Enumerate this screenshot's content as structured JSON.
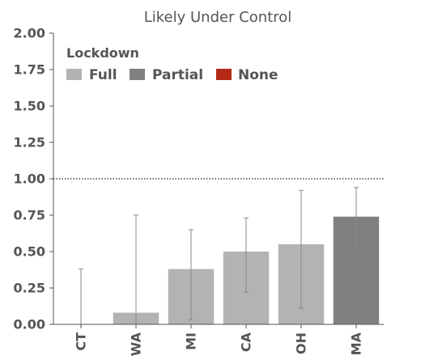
{
  "chart_data": {
    "type": "bar",
    "title": "Likely Under Control",
    "xlabel": "",
    "ylabel": "",
    "ylim": [
      0,
      2
    ],
    "yticks": [
      "0.00",
      "0.25",
      "0.50",
      "0.75",
      "1.00",
      "1.25",
      "1.50",
      "1.75",
      "2.00"
    ],
    "categories": [
      "CT",
      "WA",
      "MI",
      "CA",
      "OH",
      "MA"
    ],
    "values": [
      0.0,
      0.08,
      0.38,
      0.5,
      0.55,
      0.74
    ],
    "error_low": [
      0.0,
      0.0,
      0.03,
      0.22,
      0.11,
      0.51
    ],
    "error_high": [
      0.38,
      0.75,
      0.65,
      0.73,
      0.92,
      0.94
    ],
    "groups": [
      "Full",
      "Full",
      "Full",
      "Full",
      "Full",
      "Partial"
    ],
    "reference_line": 1.0,
    "grid": false,
    "legend": {
      "title": "Lockdown",
      "placement": "top-left",
      "entries": [
        {
          "label": "Full",
          "color": "#b3b3b3"
        },
        {
          "label": "Partial",
          "color": "#808080"
        },
        {
          "label": "None",
          "color": "#b22a14"
        }
      ]
    },
    "colors": {
      "Full": "#b3b3b3",
      "Partial": "#808080",
      "None": "#b22a14",
      "axis": "#555555",
      "errorbar": "#888888",
      "reference": "#222222"
    }
  }
}
